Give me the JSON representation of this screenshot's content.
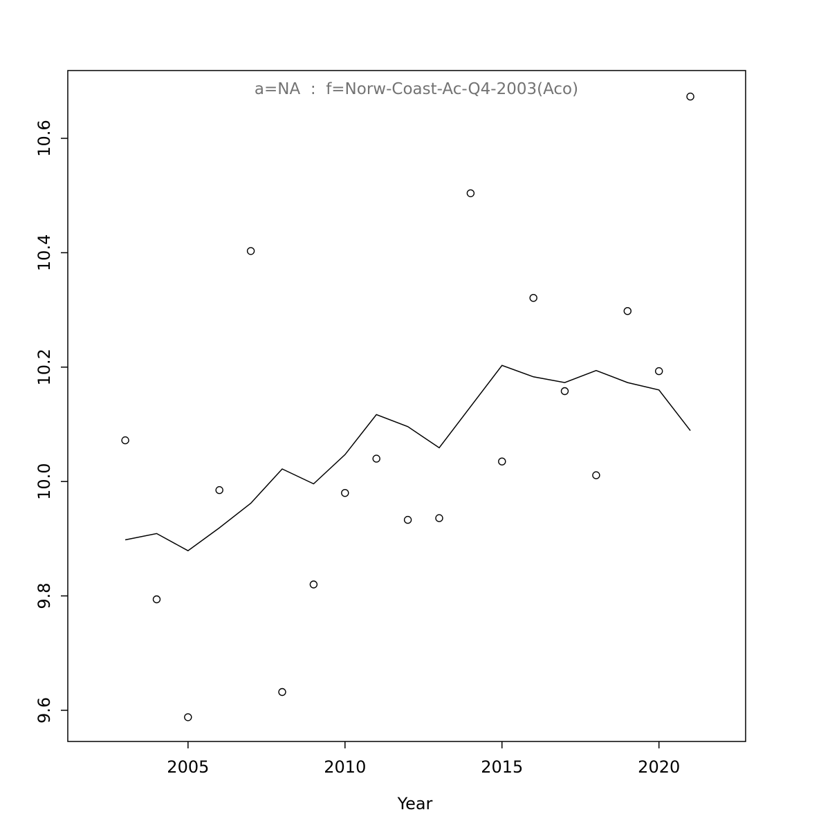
{
  "chart_data": {
    "type": "scatter",
    "title": "a=NA  :  f=Norw-Coast-Ac-Q4-2003(Aco)",
    "xlabel": "Year",
    "ylabel": "",
    "x": [
      2003,
      2004,
      2005,
      2006,
      2007,
      2008,
      2009,
      2010,
      2011,
      2012,
      2013,
      2014,
      2015,
      2016,
      2017,
      2018,
      2019,
      2020,
      2021
    ],
    "series": [
      {
        "name": "observed-points",
        "type": "scatter",
        "marker": "open-circle",
        "color": "#000000",
        "values": [
          10.072,
          9.794,
          9.588,
          9.985,
          10.403,
          9.632,
          9.82,
          9.98,
          10.04,
          9.933,
          9.936,
          10.504,
          10.035,
          10.321,
          10.158,
          10.011,
          10.298,
          10.193,
          10.673
        ]
      },
      {
        "name": "fitted-line",
        "type": "line",
        "color": "#000000",
        "values": [
          9.898,
          9.909,
          9.879,
          9.919,
          9.962,
          10.022,
          9.996,
          10.047,
          10.117,
          10.096,
          10.059,
          10.131,
          10.203,
          10.183,
          10.173,
          10.194,
          10.173,
          10.16,
          10.089
        ]
      }
    ],
    "xticks": {
      "values": [
        2005,
        2010,
        2015,
        2020
      ],
      "labels": [
        "2005",
        "2010",
        "2015",
        "2020"
      ]
    },
    "yticks": {
      "values": [
        9.6,
        9.8,
        10.0,
        10.2,
        10.4,
        10.6
      ],
      "labels": [
        "9.6",
        "9.8",
        "10.0",
        "10.2",
        "10.4",
        "10.6"
      ]
    },
    "xlim": [
      2001.17,
      2022.76
    ],
    "ylim": [
      9.5455,
      10.7185
    ],
    "grid": false,
    "legend": "none",
    "title_color": "#737373",
    "foreground_color": "#000000",
    "background_color": "#ffffff"
  }
}
